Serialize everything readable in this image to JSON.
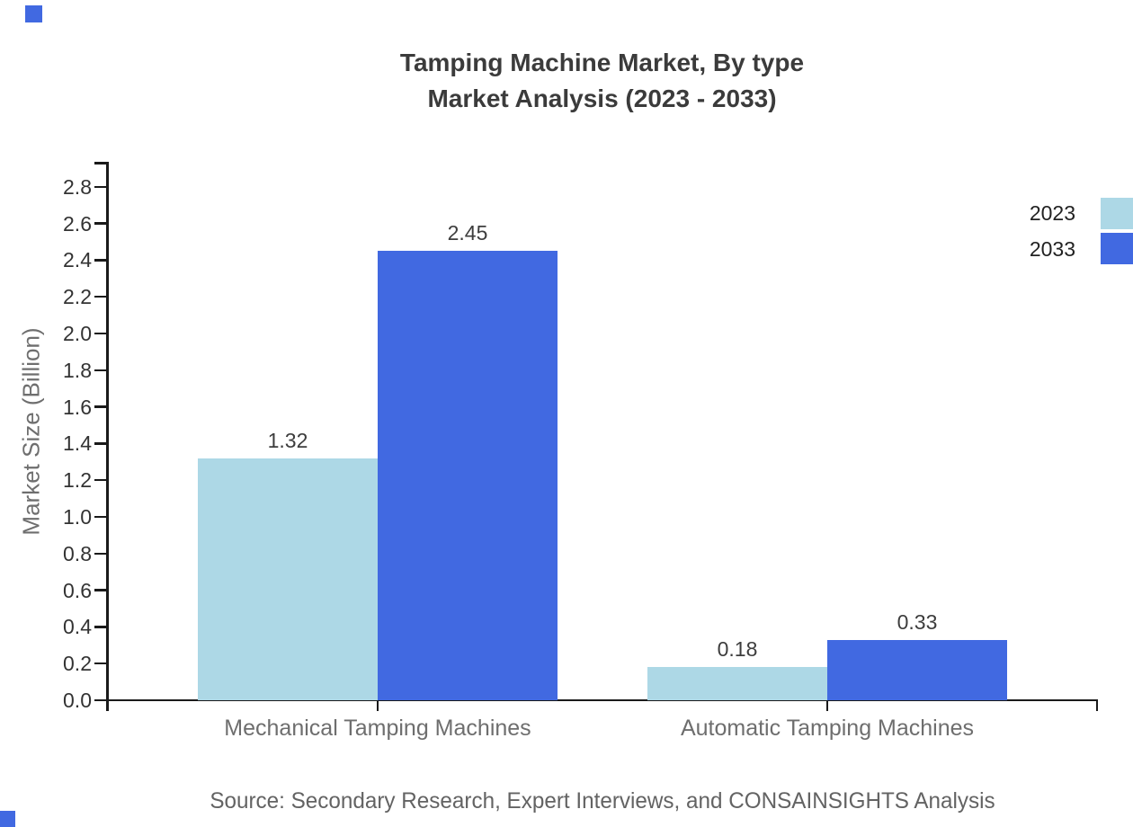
{
  "title": {
    "line1": "Tamping Machine Market, By type",
    "line2": "Market Analysis (2023 - 2033)"
  },
  "y_axis": {
    "title": "Market Size (Billion)",
    "ticks": [
      "0.0",
      "0.2",
      "0.4",
      "0.6",
      "0.8",
      "1.0",
      "1.2",
      "1.4",
      "1.6",
      "1.8",
      "2.0",
      "2.2",
      "2.4",
      "2.6",
      "2.8"
    ]
  },
  "legend": {
    "items": [
      {
        "label": "2023",
        "color": "#ADD8E6"
      },
      {
        "label": "2033",
        "color": "#4169E1"
      }
    ]
  },
  "source": "Source: Secondary Research, Expert Interviews, and CONSAINSIGHTS Analysis",
  "colors": {
    "series_2023": "#ADD8E6",
    "series_2033": "#4169E1",
    "axis": "#1a1a1a",
    "title_text": "#3b3b3b",
    "tick_text": "#333333",
    "value_text": "#3d3d3d",
    "category_text": "#6e6e6e",
    "source_text": "#636363",
    "background": "#ffffff"
  },
  "chart_data": {
    "type": "bar",
    "title": "Tamping Machine Market, By type — Market Analysis (2023 - 2033)",
    "categories": [
      "Mechanical Tamping Machines",
      "Automatic Tamping Machines"
    ],
    "series": [
      {
        "name": "2023",
        "color": "#ADD8E6",
        "values": [
          1.32,
          0.18
        ],
        "labels": [
          "1.32",
          "0.18"
        ]
      },
      {
        "name": "2033",
        "color": "#4169E1",
        "values": [
          2.45,
          0.33
        ],
        "labels": [
          "2.45",
          "0.33"
        ]
      }
    ],
    "xlabel": "",
    "ylabel": "Market Size (Billion)",
    "ylim": [
      0,
      2.95
    ],
    "ytick_interval": 0.2,
    "grid": false,
    "legend_position": "top-right",
    "value_labels_shown": true
  }
}
